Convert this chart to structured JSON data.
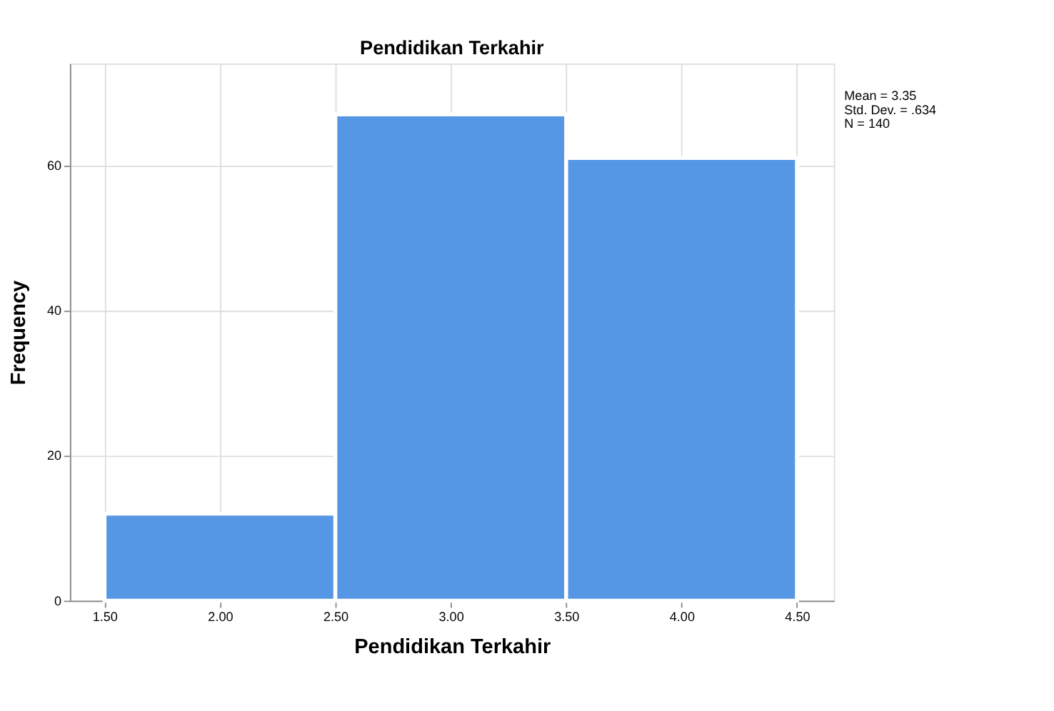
{
  "chart_data": {
    "type": "histogram",
    "title": "Pendidikan Terkahir",
    "xlabel": "Pendidikan Terkahir",
    "ylabel": "Frequency",
    "bins": [
      1.5,
      2.5,
      3.5,
      4.5
    ],
    "values": [
      12,
      67,
      61
    ],
    "color": "#5597e4",
    "xlim": [
      1.35,
      4.66
    ],
    "xticks": [
      {
        "value": 1.5,
        "label": "1.50"
      },
      {
        "value": 2.0,
        "label": "2.00"
      },
      {
        "value": 2.5,
        "label": "2.50"
      },
      {
        "value": 3.0,
        "label": "3.00"
      },
      {
        "value": 3.5,
        "label": "3.50"
      },
      {
        "value": 4.0,
        "label": "4.00"
      },
      {
        "value": 4.5,
        "label": "4.50"
      }
    ],
    "ylim": [
      0,
      74
    ],
    "yticks": [
      0,
      20,
      40,
      60
    ],
    "grid": true,
    "annotations": [
      "Mean = 3.35",
      "Std. Dev. = .634",
      "N = 140"
    ]
  }
}
